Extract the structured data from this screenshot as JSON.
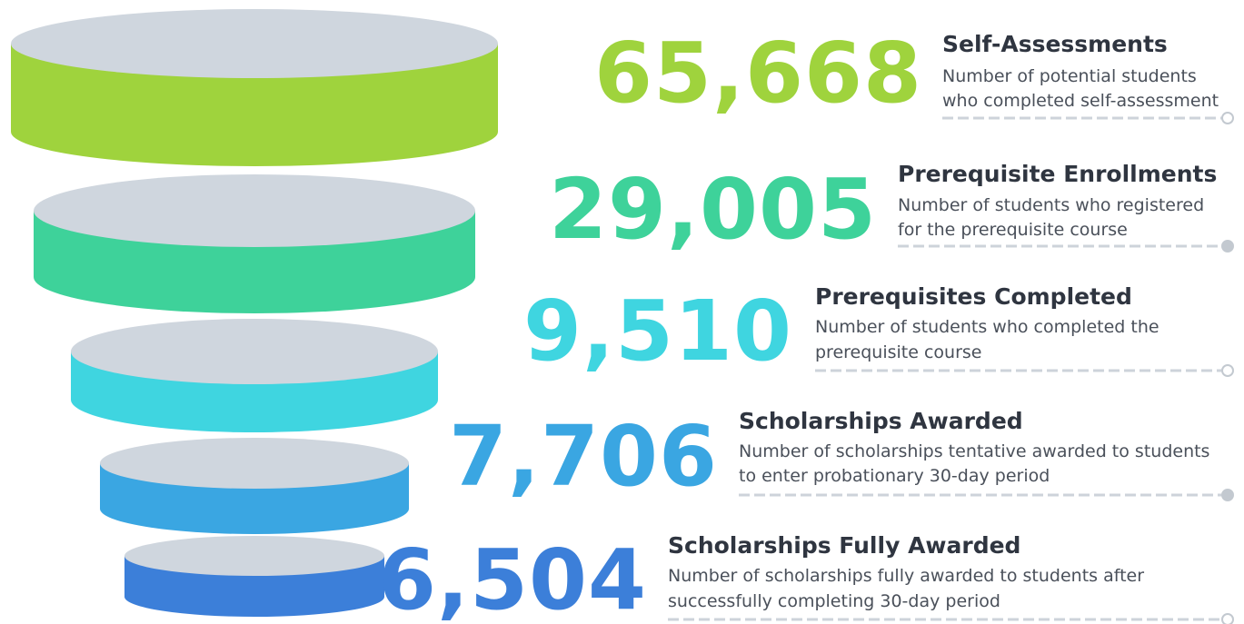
{
  "stages": [
    {
      "value": "65,668",
      "title": "Self-Assessments",
      "description": [
        "Number of potential students",
        "who completed self-assessment"
      ],
      "color": "#9fd33d"
    },
    {
      "value": "29,005",
      "title": "Prerequisite Enrollments",
      "description": [
        "Number of students who registered",
        "for the prerequisite course"
      ],
      "color": "#3ed29a"
    },
    {
      "value": "9,510",
      "title": "Prerequisites Completed",
      "description": [
        "Number of students who completed the",
        "prerequisite course"
      ],
      "color": "#3fd5e0"
    },
    {
      "value": "7,706",
      "title": "Scholarships Awarded",
      "description": [
        "Number of scholarships tentative awarded to students",
        "to enter probationary 30-day period"
      ],
      "color": "#3aa6e2"
    },
    {
      "value": "6,504",
      "title": "Scholarships Fully Awarded",
      "description": [
        "Number of scholarships fully awarded to students after",
        "successfully completing 30-day period"
      ],
      "color": "#3c7fd9"
    }
  ]
}
